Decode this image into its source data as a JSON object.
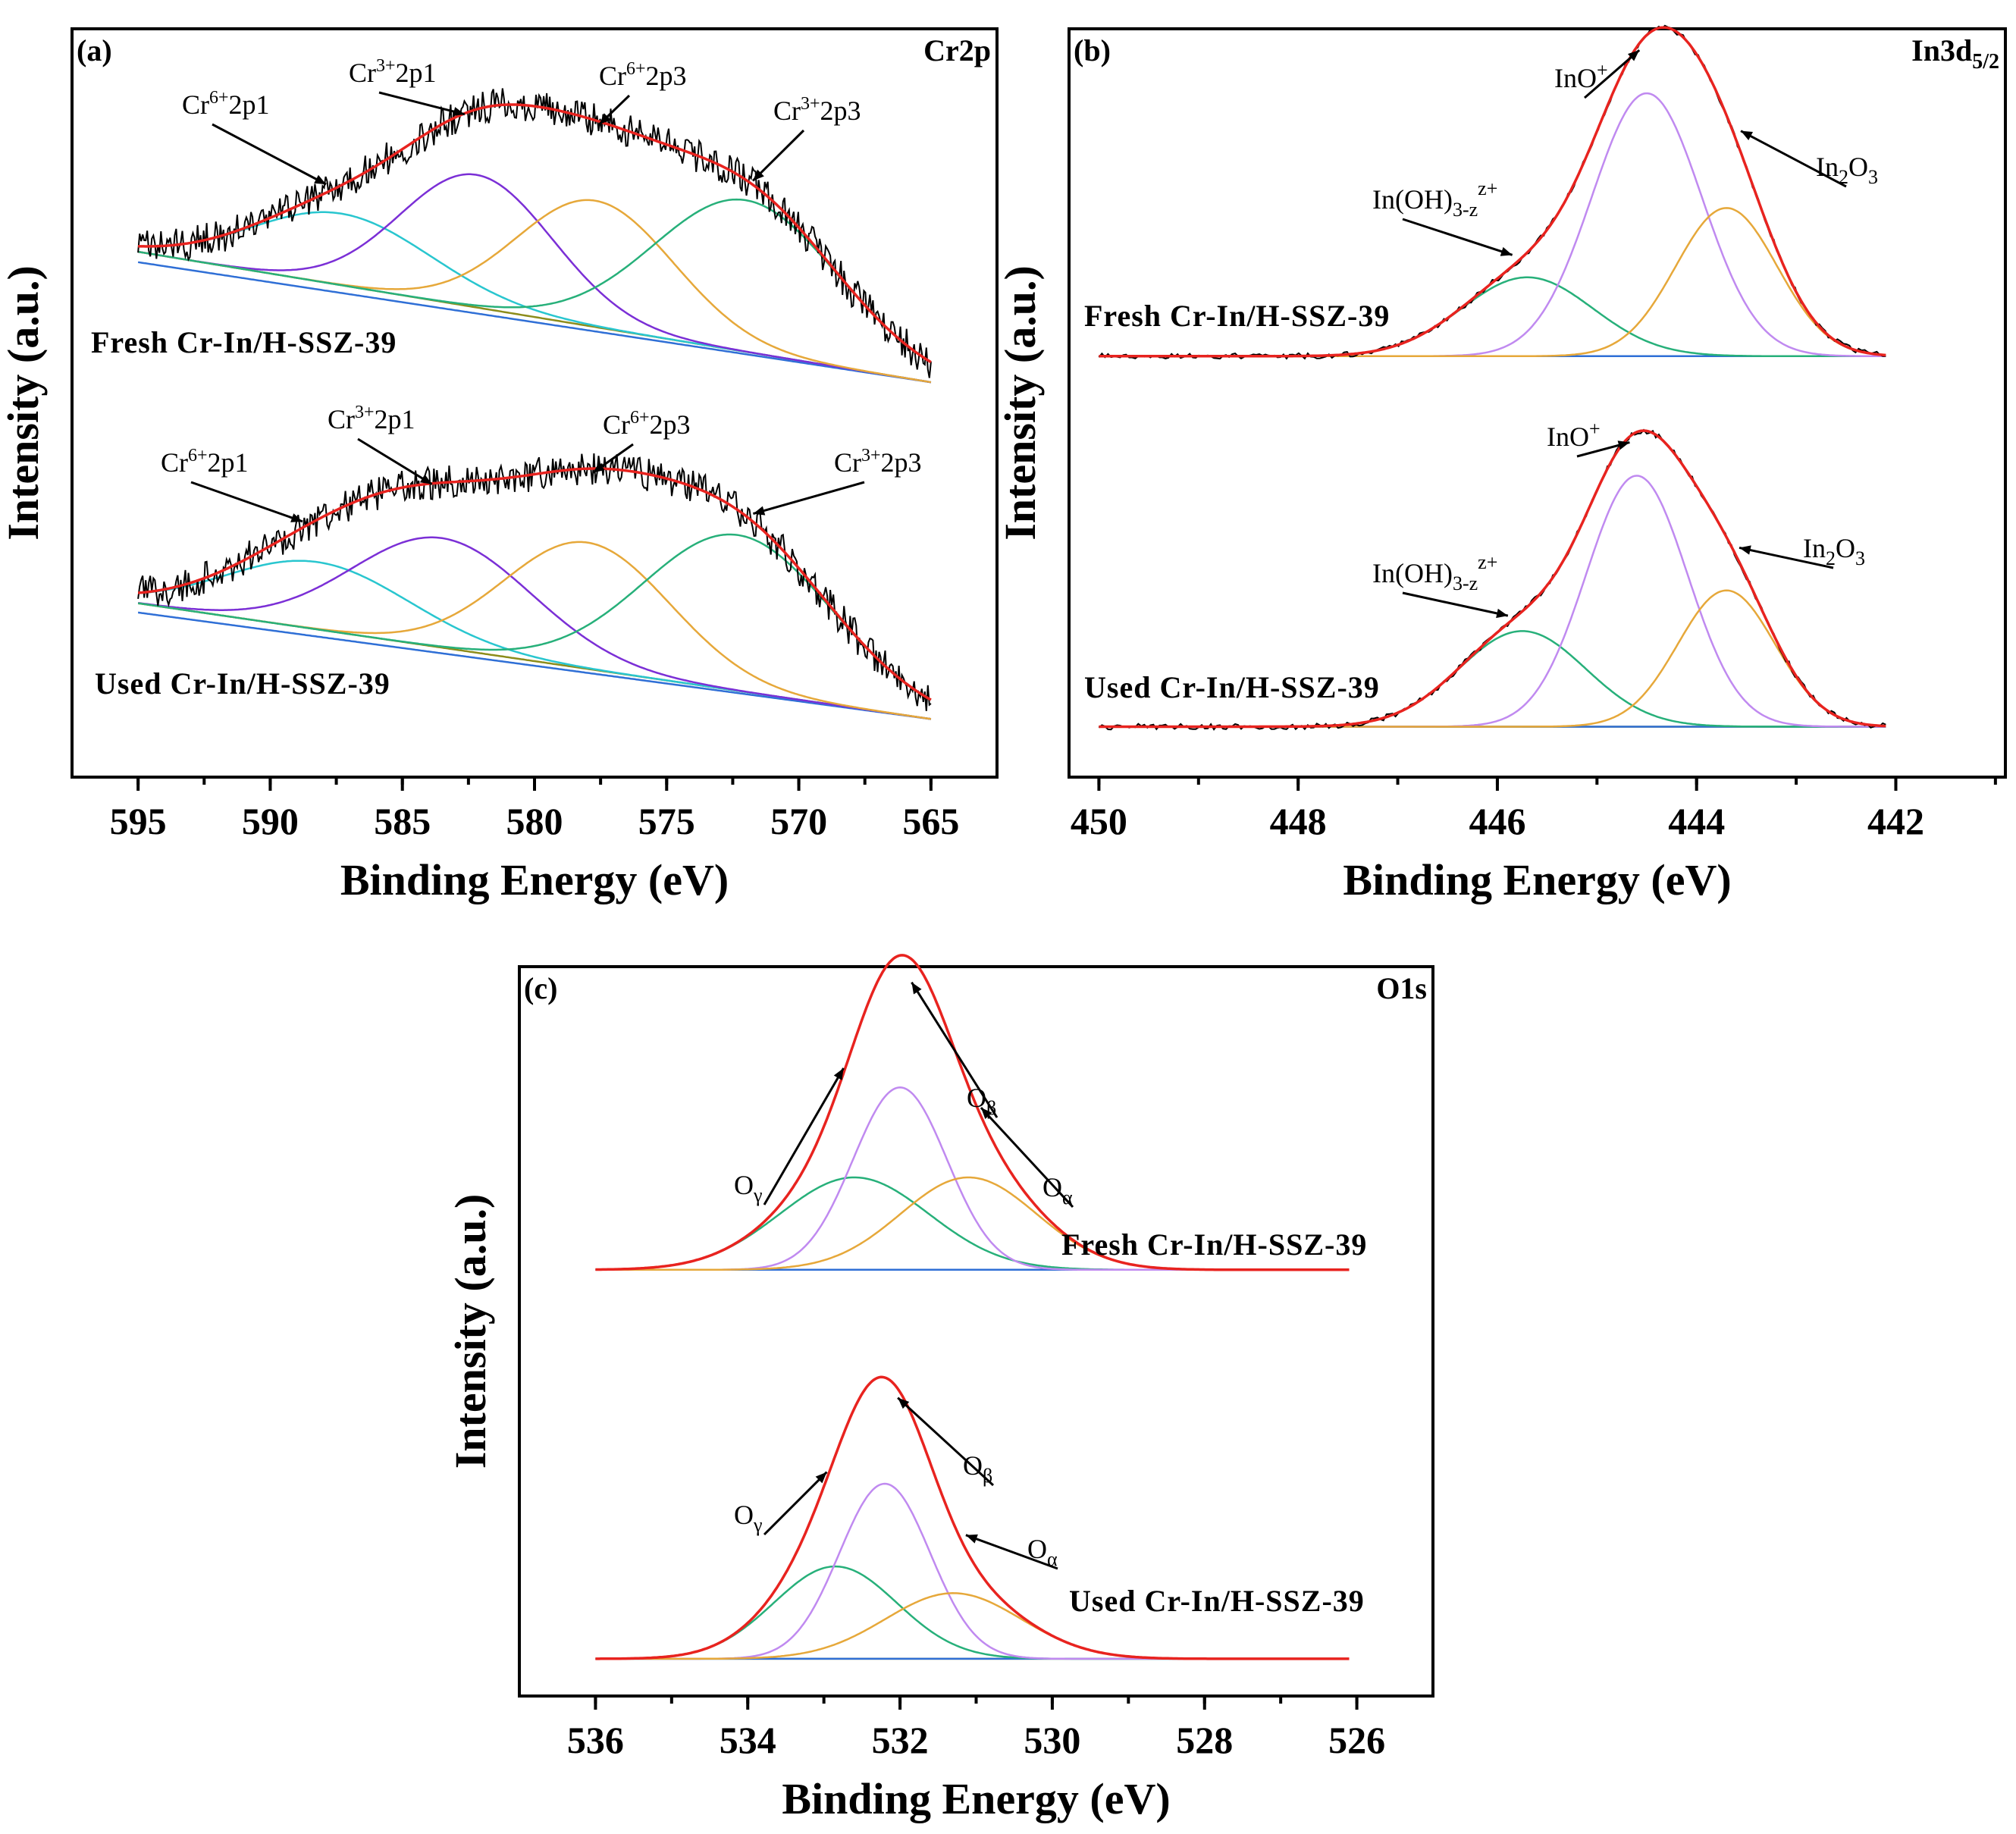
{
  "figure_title": "XPS spectra of fresh and used Cr-In/H-SSZ-39",
  "colors": {
    "raw": "#000000",
    "envelope": "#e8231f",
    "baseline": "#2f6fd6",
    "background": "#8c8c1a",
    "cyan": "#29c6cf",
    "purple": "#7b2fd6",
    "orange": "#e6a83a",
    "green": "#27b07a",
    "violet": "#c08af0"
  },
  "chart_data": [
    {
      "id": "a",
      "type": "line",
      "panel_label": "(a)",
      "title": "Cr2p",
      "xlabel": "Binding Energy (eV)",
      "ylabel": "Intensity (a.u.)",
      "xlim": [
        597.5,
        562.5
      ],
      "xticks": [
        595,
        590,
        585,
        580,
        575,
        570,
        565
      ],
      "xtick_labels": [
        "595",
        "590",
        "585",
        "580",
        "575",
        "570",
        "565"
      ],
      "x_range": [
        595,
        565
      ],
      "noise_amplitude": 0.08,
      "spectra": [
        {
          "sample": "Fresh Cr-In/H-SSZ-39",
          "offset": 1.6,
          "baseline": {
            "start": 0.62,
            "end": 0.0
          },
          "peaks": [
            {
              "label": "Cr6+2p1",
              "sup": "6+",
              "sub": "",
              "center": 587.3,
              "height": 0.34,
              "fwhm": 8.0,
              "color": "cyan"
            },
            {
              "label": "Cr3+2p1",
              "sup": "3+",
              "sub": "",
              "center": 582.2,
              "height": 0.63,
              "fwhm": 6.8,
              "color": "purple"
            },
            {
              "label": "Cr6+2p3",
              "sup": "6+",
              "sub": "",
              "center": 577.7,
              "height": 0.6,
              "fwhm": 7.0,
              "color": "orange"
            },
            {
              "label": "Cr3+2p3",
              "sup": "3+",
              "sub": "",
              "center": 572.0,
              "height": 0.72,
              "fwhm": 8.2,
              "color": "green"
            }
          ]
        },
        {
          "sample": "Used Cr-In/H-SSZ-39",
          "offset": 0.0,
          "baseline": {
            "start": 0.55,
            "end": 0.0
          },
          "peaks": [
            {
              "label": "Cr6+2p1",
              "sup": "6+",
              "sub": "",
              "center": 588.2,
              "height": 0.32,
              "fwhm": 8.2,
              "color": "cyan"
            },
            {
              "label": "Cr3+2p1",
              "sup": "3+",
              "sub": "",
              "center": 583.5,
              "height": 0.52,
              "fwhm": 8.0,
              "color": "purple"
            },
            {
              "label": "Cr6+2p3",
              "sup": "6+",
              "sub": "",
              "center": 578.0,
              "height": 0.6,
              "fwhm": 7.4,
              "color": "orange"
            },
            {
              "label": "Cr3+2p3",
              "sup": "3+",
              "sub": "",
              "center": 572.3,
              "height": 0.74,
              "fwhm": 8.4,
              "color": "green"
            }
          ]
        }
      ]
    },
    {
      "id": "b",
      "type": "line",
      "panel_label": "(b)",
      "title_main": "In3d",
      "title_sub": "5/2",
      "xlabel": "Binding Energy (eV)",
      "ylabel": "Intensity (a.u.)",
      "xlim": [
        450.3,
        440.9
      ],
      "xticks": [
        450,
        448,
        446,
        444,
        442
      ],
      "xtick_labels": [
        "450",
        "448",
        "446",
        "444",
        "442"
      ],
      "x_range": [
        450,
        442.1
      ],
      "noise_amplitude": 0.012,
      "spectra": [
        {
          "sample": "Fresh Cr-In/H-SSZ-39",
          "offset": 1.55,
          "baseline": {
            "start": 0.0,
            "end": 0.0
          },
          "peaks": [
            {
              "label": "In(OH)3-zz+",
              "base": "In(OH)",
              "sub": "3-z",
              "sup": "z+",
              "center": 445.7,
              "height": 0.33,
              "fwhm": 1.55,
              "color": "green"
            },
            {
              "label": "InO+",
              "base": "InO",
              "sub": "",
              "sup": "+",
              "center": 444.5,
              "height": 1.1,
              "fwhm": 1.3,
              "color": "violet"
            },
            {
              "label": "In2O3",
              "base": "In",
              "sub": "2",
              "sup": "",
              "tail": "O",
              "tail_sub": "3",
              "center": 443.7,
              "height": 0.62,
              "fwhm": 1.2,
              "color": "orange"
            }
          ]
        },
        {
          "sample": "Used Cr-In/H-SSZ-39",
          "offset": 0.0,
          "baseline": {
            "start": 0.0,
            "end": 0.0
          },
          "peaks": [
            {
              "label": "In(OH)3-zz+",
              "base": "In(OH)",
              "sub": "3-z",
              "sup": "z+",
              "center": 445.75,
              "height": 0.4,
              "fwhm": 1.5,
              "color": "green"
            },
            {
              "label": "InO+",
              "base": "InO",
              "sub": "",
              "sup": "+",
              "center": 444.6,
              "height": 1.05,
              "fwhm": 1.2,
              "color": "violet"
            },
            {
              "label": "In2O3",
              "base": "In",
              "sub": "2",
              "sup": "",
              "tail": "O",
              "tail_sub": "3",
              "center": 443.7,
              "height": 0.57,
              "fwhm": 1.15,
              "color": "orange"
            }
          ]
        }
      ]
    },
    {
      "id": "c",
      "type": "line",
      "panel_label": "(c)",
      "title": "O1s",
      "xlabel": "Binding Energy (eV)",
      "ylabel": "Intensity (a.u.)",
      "xlim": [
        537.0,
        525.0
      ],
      "xticks": [
        536,
        534,
        532,
        530,
        528,
        526
      ],
      "xtick_labels": [
        "536",
        "534",
        "532",
        "530",
        "528",
        "526"
      ],
      "x_range": [
        536,
        526.1
      ],
      "noise_amplitude": 0.0,
      "spectra": [
        {
          "sample": "Fresh Cr-In/H-SSZ-39",
          "offset": 1.6,
          "baseline": {
            "start": 0.0,
            "end": 0.0
          },
          "peaks": [
            {
              "label": "Oγ",
              "base": "O",
              "sub": "γ",
              "sup": "",
              "center": 532.6,
              "height": 0.38,
              "fwhm": 2.3,
              "color": "green"
            },
            {
              "label": "Oβ",
              "base": "O",
              "sub": "β",
              "sup": "",
              "center": 532.0,
              "height": 0.75,
              "fwhm": 1.45,
              "color": "violet"
            },
            {
              "label": "Oα",
              "base": "O",
              "sub": "α",
              "sup": "",
              "center": 531.1,
              "height": 0.38,
              "fwhm": 2.1,
              "color": "orange"
            }
          ]
        },
        {
          "sample": "Used Cr-In/H-SSZ-39",
          "offset": 0.0,
          "baseline": {
            "start": 0.0,
            "end": 0.0
          },
          "peaks": [
            {
              "label": "Oγ",
              "base": "O",
              "sub": "γ",
              "sup": "",
              "center": 532.85,
              "height": 0.38,
              "fwhm": 1.9,
              "color": "green"
            },
            {
              "label": "Oβ",
              "base": "O",
              "sub": "β",
              "sup": "",
              "center": 532.2,
              "height": 0.72,
              "fwhm": 1.4,
              "color": "violet"
            },
            {
              "label": "Oα",
              "base": "O",
              "sub": "α",
              "sup": "",
              "center": 531.3,
              "height": 0.27,
              "fwhm": 2.1,
              "color": "orange"
            }
          ]
        }
      ]
    }
  ]
}
